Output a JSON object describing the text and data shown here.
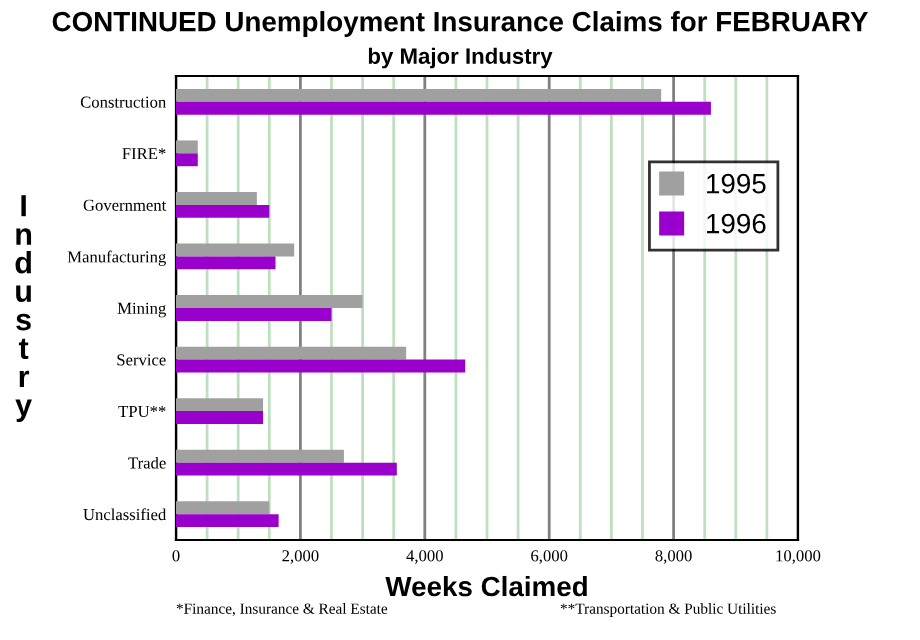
{
  "chart_data": {
    "type": "bar",
    "orientation": "horizontal",
    "title": "CONTINUED Unemployment Insurance Claims for FEBRUARY",
    "subtitle": "by Major Industry",
    "xlabel": "Weeks Claimed",
    "ylabel": "Industry",
    "categories": [
      "Construction",
      "FIRE*",
      "Government",
      "Manufacturing",
      "Mining",
      "Service",
      "TPU**",
      "Trade",
      "Unclassified"
    ],
    "series": [
      {
        "name": "1995",
        "color": "#a0a0a0",
        "values": [
          7800,
          350,
          1300,
          1900,
          3000,
          3700,
          1400,
          2700,
          1500
        ]
      },
      {
        "name": "1996",
        "color": "#9900cc",
        "values": [
          8600,
          350,
          1500,
          1600,
          2500,
          4650,
          1400,
          3550,
          1650
        ]
      }
    ],
    "xlim": [
      0,
      10000
    ],
    "xticks": [
      {
        "value": 0,
        "label": "0"
      },
      {
        "value": 500,
        "label": null
      },
      {
        "value": 1000,
        "label": null
      },
      {
        "value": 1500,
        "label": null
      },
      {
        "value": 2000,
        "label": "2,000"
      },
      {
        "value": 2500,
        "label": null
      },
      {
        "value": 3000,
        "label": null
      },
      {
        "value": 3500,
        "label": null
      },
      {
        "value": 4000,
        "label": "4,000"
      },
      {
        "value": 4500,
        "label": null
      },
      {
        "value": 5000,
        "label": null
      },
      {
        "value": 5500,
        "label": null
      },
      {
        "value": 6000,
        "label": "6,000"
      },
      {
        "value": 6500,
        "label": null
      },
      {
        "value": 7000,
        "label": null
      },
      {
        "value": 7500,
        "label": null
      },
      {
        "value": 8000,
        "label": "8,000"
      },
      {
        "value": 8500,
        "label": null
      },
      {
        "value": 9000,
        "label": null
      },
      {
        "value": 9500,
        "label": null
      },
      {
        "value": 10000,
        "label": "10,000"
      }
    ],
    "grid": "x",
    "legend": "right",
    "annotations": [
      "*Finance, Insurance & Real Estate",
      "**Transportation & Public Utilities"
    ]
  }
}
